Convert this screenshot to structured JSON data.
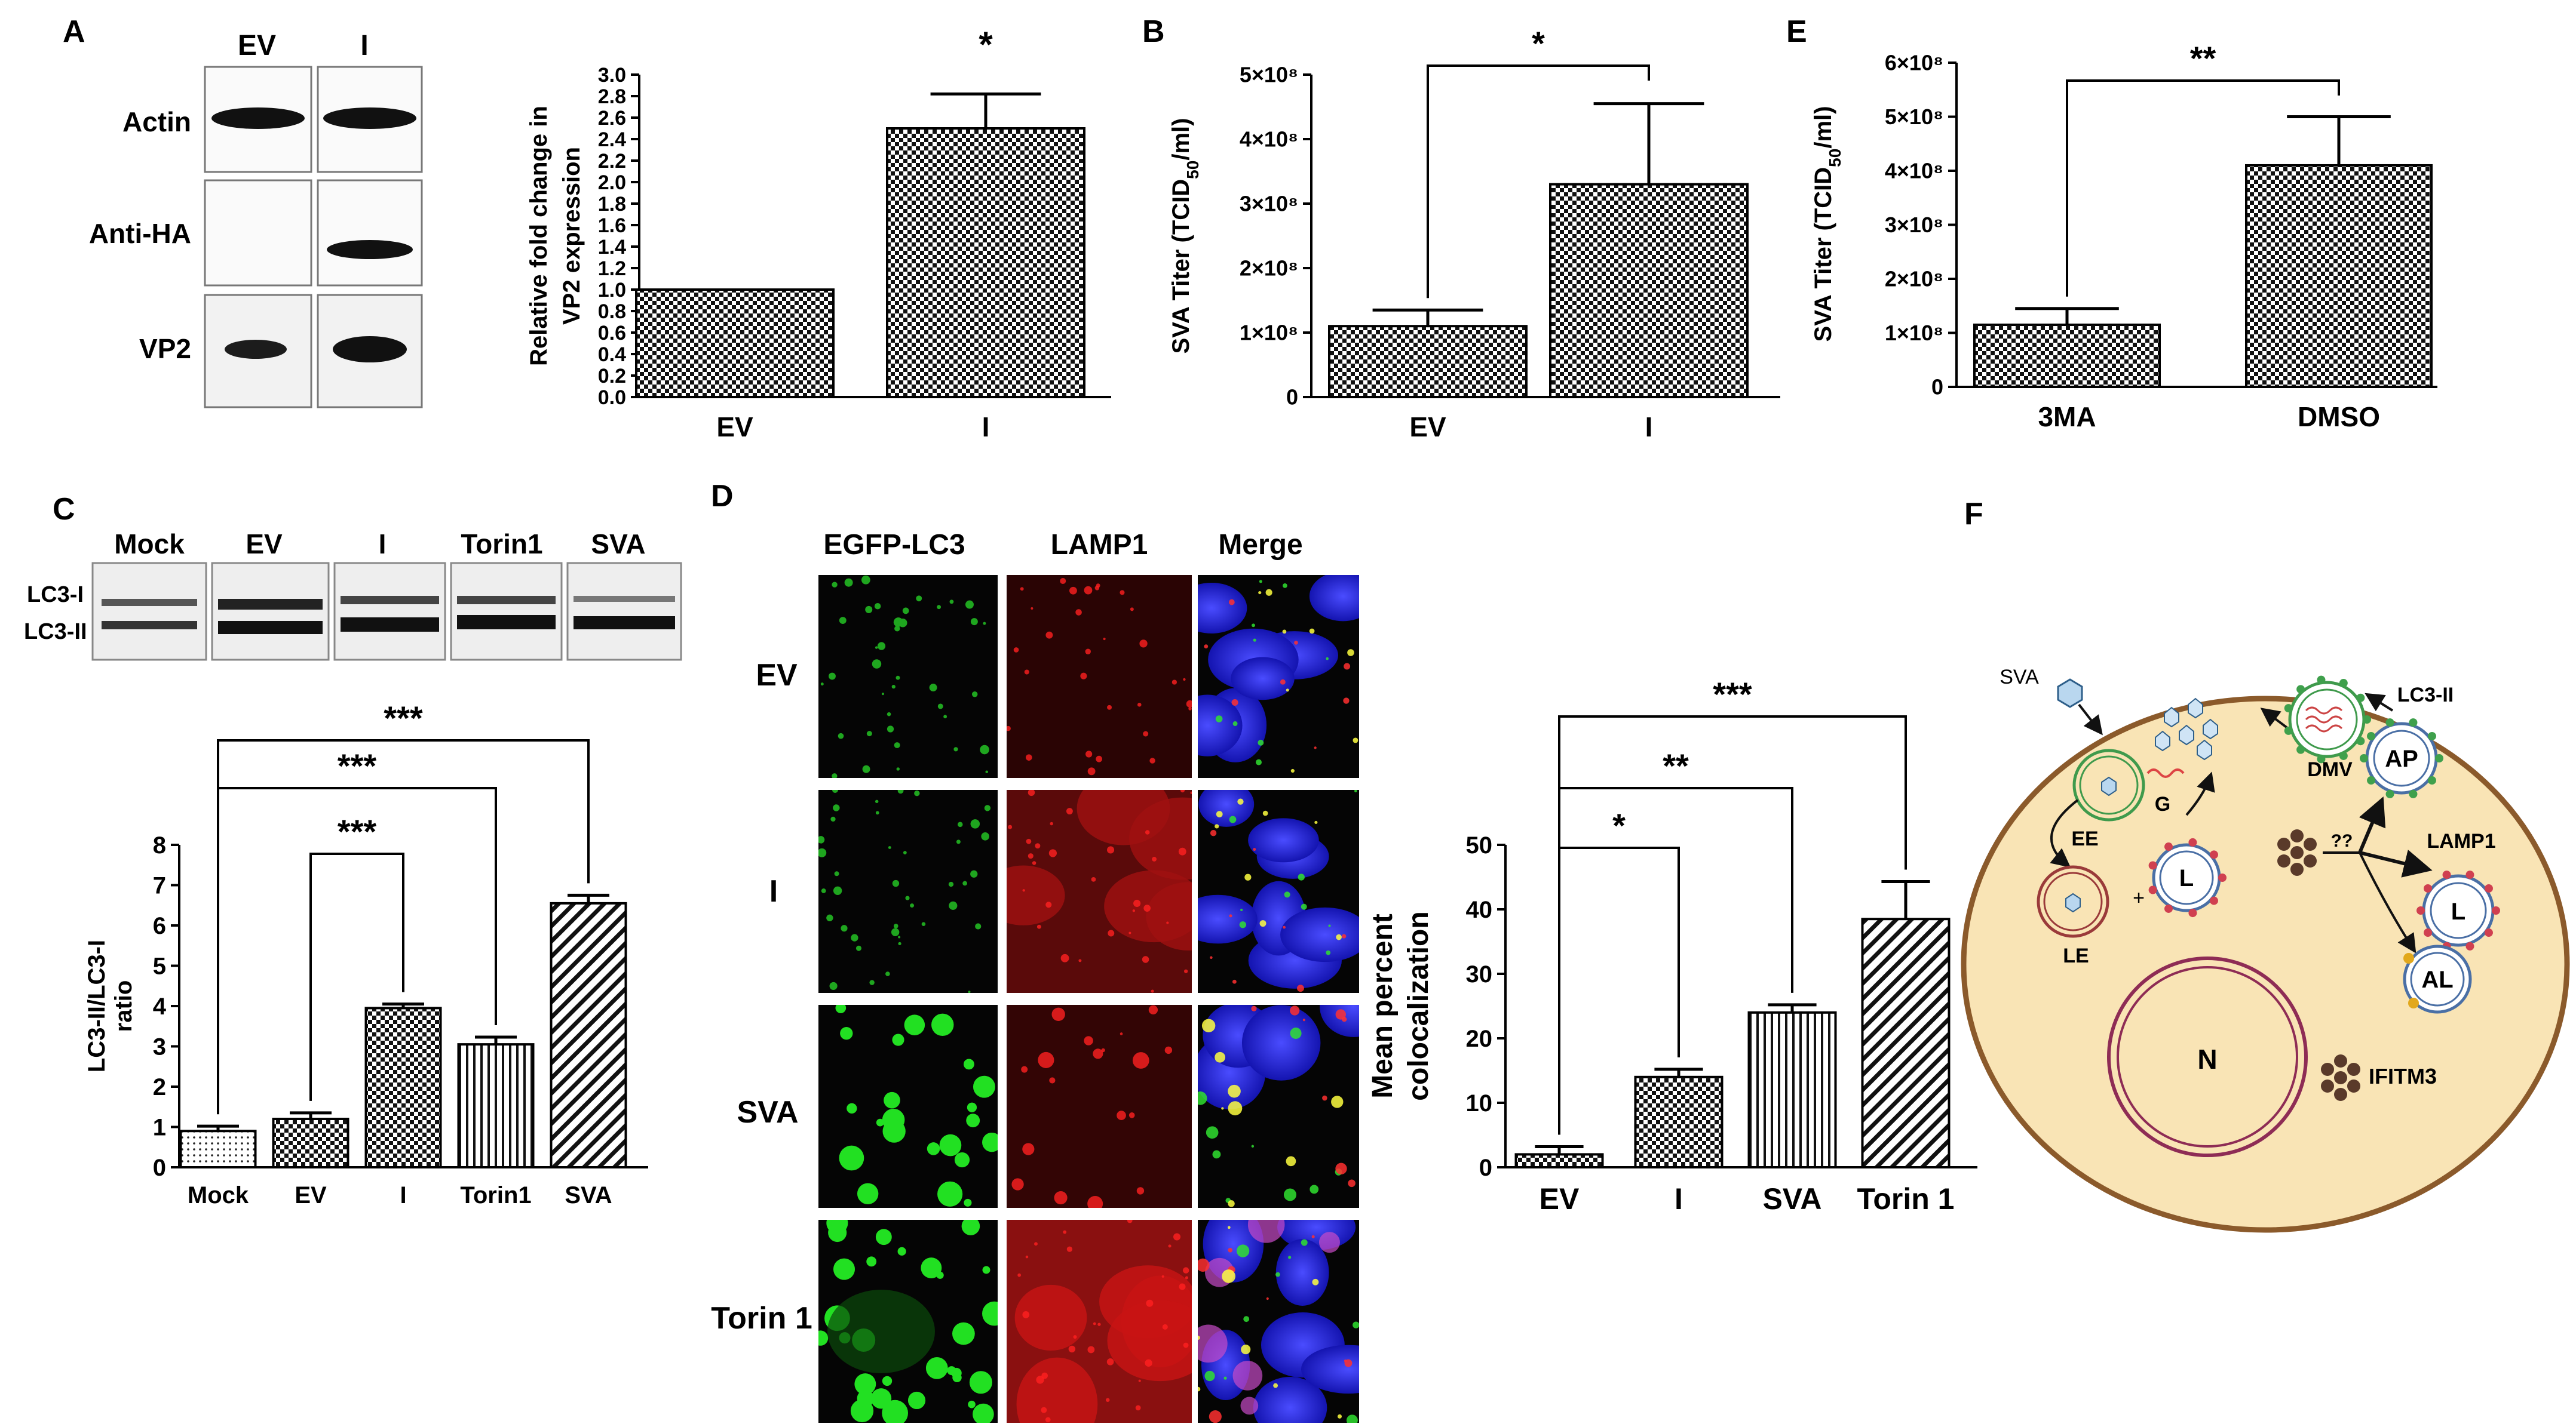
{
  "panel_letters": {
    "A": "A",
    "B": "B",
    "C": "C",
    "D": "D",
    "E": "E",
    "F": "F"
  },
  "panel_A": {
    "blot_lanes": [
      "EV",
      "I"
    ],
    "blot_rows": [
      "Actin",
      "Anti-HA",
      "VP2"
    ]
  },
  "panel_C_blot": {
    "lanes": [
      "Mock",
      "EV",
      "I",
      "Torin1",
      "SVA"
    ],
    "bands": [
      "LC3-I",
      "LC3-II"
    ]
  },
  "panel_D_images": {
    "columns": [
      "EGFP-LC3",
      "LAMP1",
      "Merge"
    ],
    "rows": [
      "EV",
      "I",
      "SVA",
      "Torin 1"
    ]
  },
  "panel_F": {
    "labels": {
      "sva": "SVA",
      "ee": "EE",
      "le": "LE",
      "g": "G",
      "dmv": "DMV",
      "lc3": "LC3-II",
      "ap": "AP",
      "lamp1": "LAMP1",
      "l1": "L",
      "l2": "L",
      "al": "AL",
      "n": "N",
      "ifitm3": "IFITM3",
      "plus": "+",
      "qq": "??"
    }
  },
  "chart_data": [
    {
      "id": "A_bar",
      "type": "bar",
      "categories": [
        "EV",
        "I"
      ],
      "values": [
        1.0,
        2.5
      ],
      "errors": [
        0,
        0.32
      ],
      "ylabel": [
        "Relative fold change in",
        "VP2 expression"
      ],
      "ylim": [
        0,
        3.0
      ],
      "yticks": [
        "0.0",
        "0.2",
        "0.4",
        "0.6",
        "0.8",
        "1.0",
        "1.2",
        "1.4",
        "1.6",
        "1.8",
        "2.0",
        "2.2",
        "2.4",
        "2.6",
        "2.8",
        "3.0"
      ],
      "pattern": [
        "check",
        "check"
      ],
      "sig": [
        {
          "text": "*",
          "over": 1
        }
      ]
    },
    {
      "id": "B_bar",
      "type": "bar",
      "categories": [
        "EV",
        "I"
      ],
      "values": [
        1.1,
        3.3
      ],
      "errors": [
        0.25,
        1.25
      ],
      "ylabel": "SVA Titer (TCID50/ml)",
      "ylim": [
        0,
        5
      ],
      "yticks": [
        "0",
        "1×10⁸",
        "2×10⁸",
        "3×10⁸",
        "4×10⁸",
        "5×10⁸"
      ],
      "pattern": [
        "check",
        "check"
      ],
      "sig": [
        {
          "text": "*",
          "from": 0,
          "to": 1
        }
      ]
    },
    {
      "id": "E_bar",
      "type": "bar",
      "categories": [
        "3MA",
        "DMSO"
      ],
      "values": [
        1.15,
        4.1
      ],
      "errors": [
        0.3,
        0.9
      ],
      "ylabel": "SVA Titer (TCID50/ml)",
      "ylim": [
        0,
        6
      ],
      "yticks": [
        "0",
        "1×10⁸",
        "2×10⁸",
        "3×10⁸",
        "4×10⁸",
        "5×10⁸",
        "6×10⁸"
      ],
      "pattern": [
        "check",
        "check"
      ],
      "sig": [
        {
          "text": "**",
          "from": 0,
          "to": 1
        }
      ]
    },
    {
      "id": "C_bar",
      "type": "bar",
      "categories": [
        "Mock",
        "EV",
        "I",
        "Torin1",
        "SVA"
      ],
      "values": [
        0.9,
        1.2,
        3.95,
        3.05,
        6.55
      ],
      "errors": [
        0.12,
        0.15,
        0.1,
        0.18,
        0.2
      ],
      "ylabel": [
        "LC3-II/LC3-I",
        "ratio"
      ],
      "ylim": [
        0,
        8
      ],
      "yticks": [
        "0",
        "1",
        "2",
        "3",
        "4",
        "5",
        "6",
        "7",
        "8"
      ],
      "pattern": [
        "dots",
        "check",
        "check",
        "vlines",
        "diag"
      ],
      "sig": [
        {
          "text": "***",
          "from": 1,
          "to": 2
        },
        {
          "text": "***",
          "from": 0,
          "to": 3
        },
        {
          "text": "***",
          "from": 0,
          "to": 4
        }
      ]
    },
    {
      "id": "D_bar",
      "type": "bar",
      "categories": [
        "EV",
        "I",
        "SVA",
        "Torin 1"
      ],
      "values": [
        2.0,
        14.0,
        24.0,
        38.5
      ],
      "errors": [
        1.2,
        1.2,
        1.2,
        5.8
      ],
      "ylabel": [
        "Mean percent",
        "colocalization"
      ],
      "ylim": [
        0,
        50
      ],
      "yticks": [
        "0",
        "10",
        "20",
        "30",
        "40",
        "50"
      ],
      "pattern": [
        "check",
        "check",
        "vlines",
        "diag"
      ],
      "sig": [
        {
          "text": "*",
          "from": 0,
          "to": 1
        },
        {
          "text": "**",
          "from": 0,
          "to": 2
        },
        {
          "text": "***",
          "from": 0,
          "to": 3
        }
      ]
    }
  ]
}
